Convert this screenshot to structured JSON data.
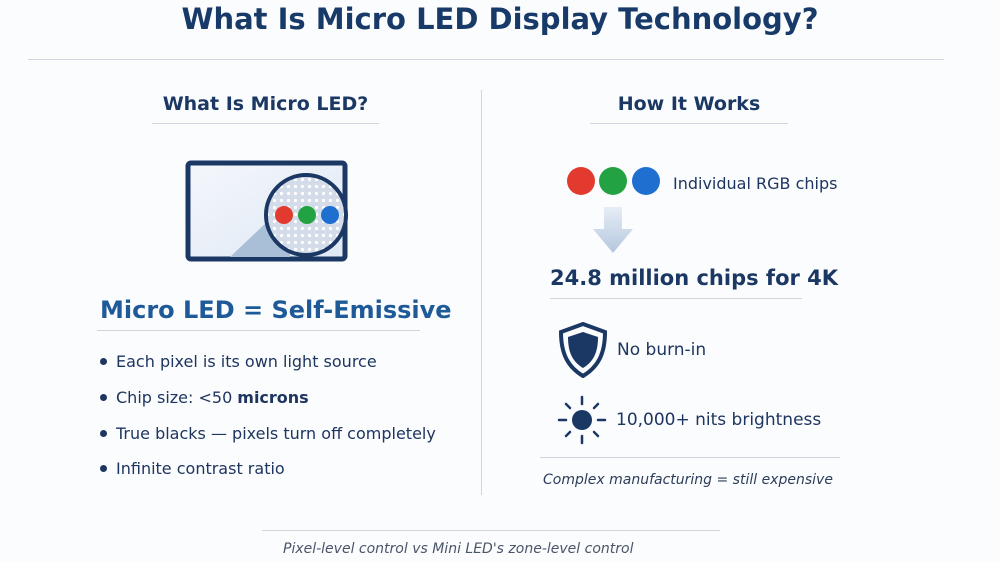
{
  "title": "What Is Micro LED Display Technology?",
  "left": {
    "heading": "What Is Micro LED?",
    "headline": "Micro LED = Self-Emissive",
    "bullets": [
      {
        "text": "Each pixel is its own light source"
      },
      {
        "text": "Chip size: <50",
        "bold": "microns"
      },
      {
        "text": "True blacks — pixels turn off completely"
      },
      {
        "text": "Infinite contrast ratio"
      }
    ]
  },
  "right": {
    "heading": "How It Works",
    "rgb_label": "Individual RGB chips",
    "chips_stat": "24.8 million chips for 4K",
    "feature_burn": "No burn-in",
    "feature_brightness": "10,000+ nits brightness",
    "note": "Complex manufacturing = still expensive"
  },
  "footer": "Pixel-level control vs Mini LED's zone-level control",
  "colors": {
    "red": "#e23a2e",
    "green": "#23a243",
    "blue": "#1f6fd1",
    "navy": "#1b3763",
    "accent": "#1e5a98"
  }
}
